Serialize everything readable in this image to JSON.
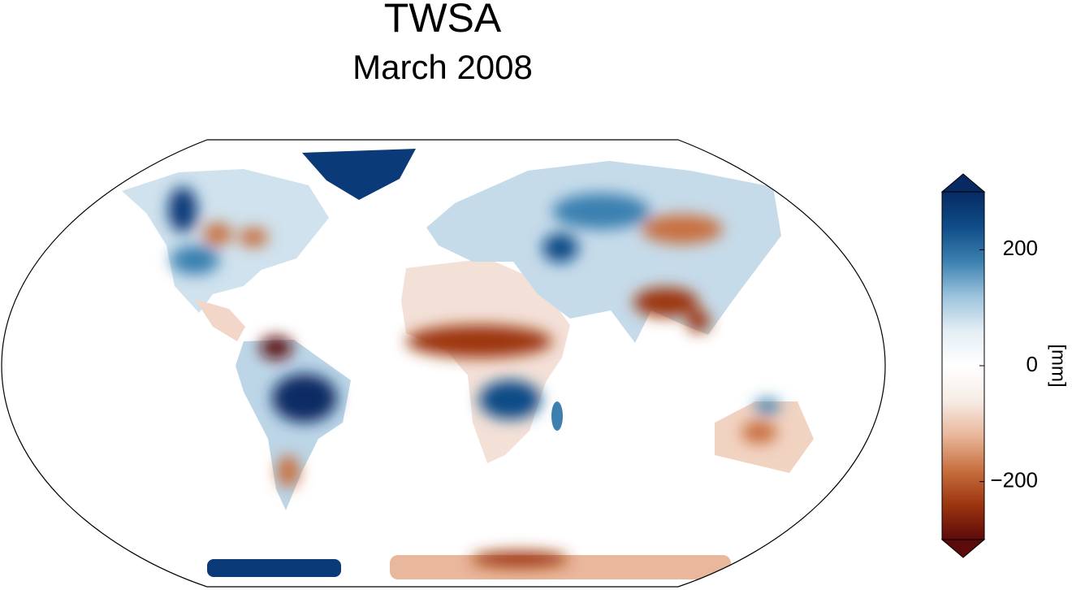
{
  "map": {
    "title": "TWSA",
    "subtitle": "March 2008",
    "colorbar": {
      "label": "[mm]",
      "lim": [
        -300,
        300
      ],
      "ticks": [
        {
          "value": -200,
          "label": "−200"
        },
        0,
        200
      ],
      "colors": [
        "#5c0a0a",
        "#9c3410",
        "#c8703f",
        "#e9b79b",
        "#f7ece6",
        "#ffffff",
        "#e4eef5",
        "#9cc3dc",
        "#3b80b0",
        "#0f4c87",
        "#072a63"
      ]
    }
  }
}
